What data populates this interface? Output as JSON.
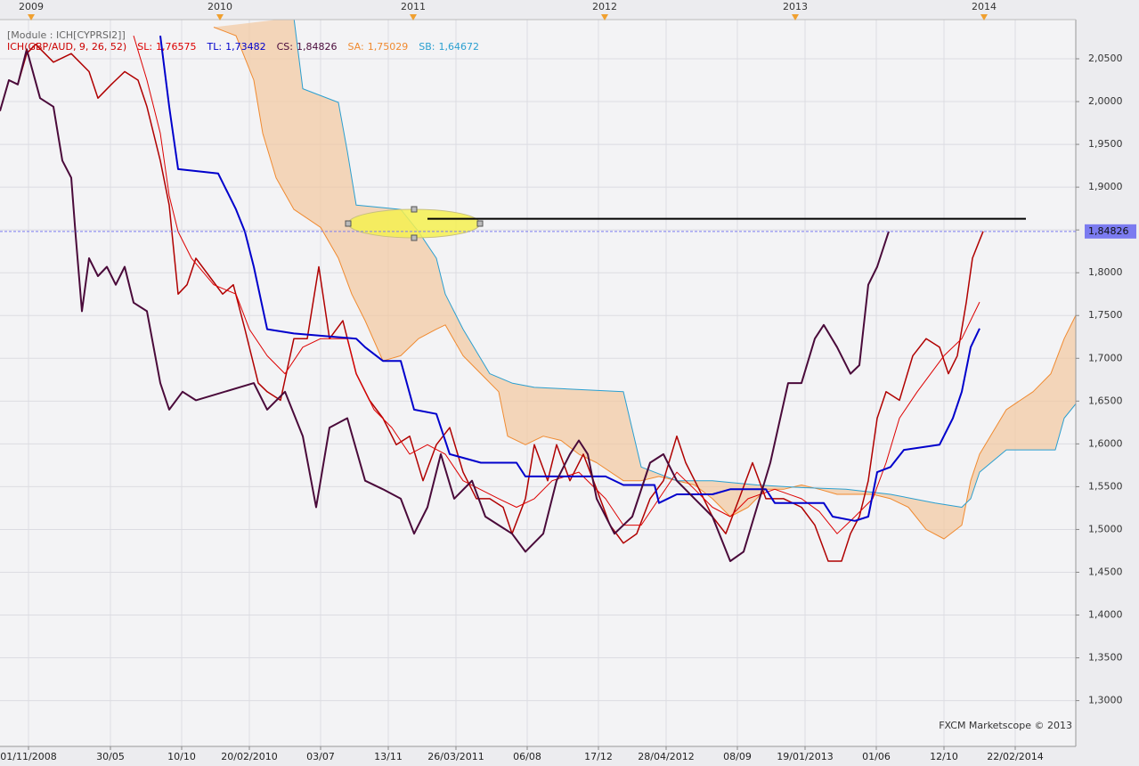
{
  "chart_data": {
    "type": "line",
    "module_label": "[Module : ICH[CYPRSI2]]",
    "indicator_label": "ICH(GBP/AUD, 9, 26, 52)",
    "watermark": "FXCM Marketscope © 2013",
    "grid": true,
    "xlim": [
      0,
      302
    ],
    "ylim": [
      1.2465,
      2.1187
    ],
    "yticks": [
      {
        "value": 1.3,
        "label": "1,3000"
      },
      {
        "value": 1.35,
        "label": "1,3500"
      },
      {
        "value": 1.4,
        "label": "1,4000"
      },
      {
        "value": 1.45,
        "label": "1,4500"
      },
      {
        "value": 1.5,
        "label": "1,5000"
      },
      {
        "value": 1.55,
        "label": "1,5500"
      },
      {
        "value": 1.6,
        "label": "1,6000"
      },
      {
        "value": 1.65,
        "label": "1,6500"
      },
      {
        "value": 1.7,
        "label": "1,7000"
      },
      {
        "value": 1.75,
        "label": "1,7500"
      },
      {
        "value": 1.8,
        "label": "1,8000"
      },
      {
        "value": 1.85,
        "label": "1,8500"
      },
      {
        "value": 1.9,
        "label": "1,9000"
      },
      {
        "value": 1.95,
        "label": "1,9500"
      },
      {
        "value": 2.0,
        "label": "2,0000"
      },
      {
        "value": 2.05,
        "label": "2,0500"
      }
    ],
    "xticks": [
      {
        "value": 8,
        "label": "01/11/2008"
      },
      {
        "value": 31,
        "label": "30/05"
      },
      {
        "value": 51,
        "label": "10/10"
      },
      {
        "value": 70,
        "label": "20/02/2010"
      },
      {
        "value": 90,
        "label": "03/07"
      },
      {
        "value": 109,
        "label": "13/11"
      },
      {
        "value": 128,
        "label": "26/03/2011"
      },
      {
        "value": 148,
        "label": "06/08"
      },
      {
        "value": 168,
        "label": "17/12"
      },
      {
        "value": 187,
        "label": "28/04/2012"
      },
      {
        "value": 207,
        "label": "08/09"
      },
      {
        "value": 226,
        "label": "19/01/2013"
      },
      {
        "value": 246,
        "label": "01/06"
      },
      {
        "value": 265,
        "label": "12/10"
      },
      {
        "value": 285,
        "label": "22/02/2014"
      }
    ],
    "year_ticks": [
      {
        "value": 8.75,
        "label": "2009"
      },
      {
        "value": 61.75,
        "label": "2010"
      },
      {
        "value": 116,
        "label": "2011"
      },
      {
        "value": 169.75,
        "label": "2012"
      },
      {
        "value": 223.25,
        "label": "2013"
      },
      {
        "value": 276.25,
        "label": "2014"
      }
    ],
    "current_price": {
      "value": 1.84826,
      "label": "1,84826",
      "color": "#7b7bf0"
    },
    "level_line": {
      "x": [
        120,
        288
      ],
      "value": 1.863,
      "color": "#000000"
    },
    "cloud_color": "#f2c7a0",
    "close": {
      "color": "#b00000",
      "x": [
        0,
        2.5,
        5,
        7.5,
        10,
        15,
        20,
        25,
        27.5,
        31.25,
        35,
        38.75,
        41.25,
        45,
        47.5,
        50,
        52.5,
        55,
        58.75,
        62.5,
        65.5,
        68.75,
        72.5,
        75,
        78.75,
        82.5,
        86.25,
        89.5,
        92.5,
        96.25,
        100,
        103.75,
        107.5,
        111.25,
        115,
        118.75,
        122.5,
        126.25,
        130,
        133.75,
        137.5,
        141.25,
        143.75,
        147.5,
        150,
        153.75,
        156.25,
        160,
        163.75,
        167.5,
        171.25,
        175,
        178.75,
        182.5,
        186.25,
        190,
        192.5,
        196.25,
        200,
        203.75,
        207.5,
        211.25,
        215,
        220,
        225,
        228.75,
        232.5,
        236.25,
        238.75,
        241.25,
        243.75,
        246.25,
        248.75,
        252.5,
        256.25,
        260,
        263.75,
        266.25,
        268.75,
        271.25,
        273,
        275,
        276
      ],
      "values": [
        1.989,
        2.025,
        2.02,
        2.056,
        2.067,
        2.046,
        2.056,
        2.035,
        2.004,
        2.02,
        2.035,
        2.025,
        1.994,
        1.931,
        1.879,
        1.775,
        1.786,
        1.817,
        1.796,
        1.775,
        1.786,
        1.734,
        1.671,
        1.661,
        1.651,
        1.723,
        1.723,
        1.807,
        1.723,
        1.744,
        1.682,
        1.651,
        1.63,
        1.599,
        1.609,
        1.557,
        1.599,
        1.619,
        1.567,
        1.536,
        1.536,
        1.526,
        1.495,
        1.536,
        1.599,
        1.557,
        1.599,
        1.557,
        1.588,
        1.547,
        1.505,
        1.484,
        1.495,
        1.536,
        1.557,
        1.609,
        1.578,
        1.547,
        1.515,
        1.495,
        1.536,
        1.578,
        1.536,
        1.536,
        1.526,
        1.505,
        1.463,
        1.463,
        1.495,
        1.515,
        1.557,
        1.63,
        1.661,
        1.651,
        1.703,
        1.723,
        1.713,
        1.682,
        1.703,
        1.765,
        1.817,
        1.838,
        1.84826
      ]
    },
    "series": [
      {
        "name": "SL:",
        "last_label": "1,76575",
        "last_value": 1.76575,
        "color": "#dd0000",
        "width": 1,
        "x": [
          37.5,
          41.25,
          45,
          47.5,
          50,
          53.75,
          60,
          66.25,
          70,
          75,
          80,
          85,
          90,
          97.5,
          100,
          105,
          110,
          115,
          120,
          125,
          130,
          140,
          145,
          150,
          155,
          162.5,
          170,
          175,
          180,
          185,
          190,
          195,
          200,
          205,
          210,
          217.5,
          225,
          230,
          235,
          240,
          245,
          248.75,
          252.5,
          257.5,
          265,
          270,
          275
        ],
        "values": [
          2.077,
          2.025,
          1.963,
          1.89,
          1.848,
          1.817,
          1.786,
          1.775,
          1.734,
          1.703,
          1.682,
          1.713,
          1.723,
          1.723,
          1.682,
          1.64,
          1.619,
          1.588,
          1.599,
          1.588,
          1.557,
          1.536,
          1.526,
          1.536,
          1.557,
          1.567,
          1.536,
          1.505,
          1.505,
          1.536,
          1.567,
          1.547,
          1.526,
          1.515,
          1.536,
          1.547,
          1.536,
          1.521,
          1.495,
          1.515,
          1.536,
          1.578,
          1.63,
          1.661,
          1.703,
          1.723,
          1.76575
        ]
      },
      {
        "name": "TL:",
        "last_label": "1,73482",
        "last_value": 1.73482,
        "color": "#0000cc",
        "width": 2,
        "x": [
          45,
          47.5,
          50,
          61.25,
          66.25,
          68.75,
          71.25,
          75,
          82.5,
          100,
          102.5,
          107.5,
          112.5,
          116.25,
          122.5,
          126.25,
          135,
          145,
          147.5,
          170,
          175,
          183.75,
          185,
          190,
          200,
          205,
          215,
          217.5,
          231.25,
          233.75,
          240,
          243.75,
          246.25,
          250,
          253.75,
          263.75,
          267.5,
          270,
          272.5,
          275
        ],
        "values": [
          2.077,
          1.994,
          1.921,
          1.916,
          1.874,
          1.848,
          1.807,
          1.734,
          1.729,
          1.723,
          1.713,
          1.697,
          1.697,
          1.64,
          1.635,
          1.588,
          1.578,
          1.578,
          1.562,
          1.562,
          1.552,
          1.552,
          1.531,
          1.541,
          1.541,
          1.547,
          1.547,
          1.531,
          1.531,
          1.515,
          1.51,
          1.515,
          1.567,
          1.573,
          1.593,
          1.599,
          1.63,
          1.661,
          1.713,
          1.73482
        ]
      },
      {
        "name": "CS:",
        "last_label": "1,84826",
        "last_value": 1.84826,
        "color": "#4a0a3a",
        "width": 2,
        "x": [
          0,
          2.5,
          5,
          7.5,
          11.25,
          15,
          17.5,
          20,
          21.25,
          23,
          25,
          27.5,
          30,
          32.5,
          35,
          37.5,
          41.25,
          45,
          47.5,
          51.25,
          55,
          71.25,
          75,
          80,
          85,
          88.75,
          92.5,
          97.5,
          102.5,
          107.5,
          112.5,
          116.25,
          120,
          123.75,
          127.5,
          132.5,
          136.25,
          140,
          143.75,
          147.5,
          152.5,
          156.25,
          160,
          162.5,
          165,
          167.5,
          172.5,
          177.5,
          182.5,
          186.25,
          190,
          195,
          200,
          205,
          208.75,
          212.5,
          216.25,
          221.25,
          225,
          228.75,
          231.25,
          235,
          238.75,
          241.25,
          243.75,
          246.25,
          249.5
        ],
        "values": [
          1.989,
          2.025,
          2.02,
          2.061,
          2.004,
          1.994,
          1.931,
          1.911,
          1.843,
          1.755,
          1.817,
          1.796,
          1.807,
          1.786,
          1.807,
          1.765,
          1.755,
          1.671,
          1.64,
          1.661,
          1.651,
          1.671,
          1.64,
          1.661,
          1.609,
          1.526,
          1.619,
          1.63,
          1.557,
          1.547,
          1.536,
          1.495,
          1.526,
          1.588,
          1.536,
          1.557,
          1.515,
          1.505,
          1.495,
          1.474,
          1.495,
          1.557,
          1.588,
          1.604,
          1.588,
          1.536,
          1.495,
          1.515,
          1.578,
          1.588,
          1.557,
          1.536,
          1.515,
          1.463,
          1.474,
          1.526,
          1.578,
          1.671,
          1.671,
          1.723,
          1.739,
          1.713,
          1.682,
          1.692,
          1.786,
          1.807,
          1.84826
        ]
      },
      {
        "name": "SA:",
        "last_label": "1,75029",
        "last_value": 1.75029,
        "color": "#f08a30",
        "width": 1,
        "x": [
          60,
          66.25,
          71.25,
          73.75,
          77.5,
          82.5,
          90,
          95,
          98.75,
          102.5,
          107.5,
          112.5,
          117.5,
          122.5,
          125,
          130,
          135,
          140,
          142.5,
          147.5,
          152.5,
          157.5,
          162.5,
          167.5,
          175,
          180,
          185,
          190,
          195,
          200,
          205,
          210,
          215,
          220,
          225,
          230,
          235,
          245,
          250,
          255,
          260,
          265,
          270,
          272.5,
          275,
          282.5,
          290,
          295,
          298.75,
          302
        ],
        "values": [
          2.087,
          2.077,
          2.025,
          1.963,
          1.911,
          1.874,
          1.853,
          1.817,
          1.775,
          1.744,
          1.697,
          1.703,
          1.723,
          1.734,
          1.739,
          1.703,
          1.682,
          1.661,
          1.609,
          1.599,
          1.609,
          1.604,
          1.588,
          1.578,
          1.557,
          1.557,
          1.562,
          1.557,
          1.552,
          1.536,
          1.515,
          1.526,
          1.547,
          1.547,
          1.552,
          1.547,
          1.541,
          1.541,
          1.536,
          1.526,
          1.5,
          1.489,
          1.505,
          1.557,
          1.588,
          1.64,
          1.661,
          1.682,
          1.723,
          1.75029
        ]
      },
      {
        "name": "SB:",
        "last_label": "1,64672",
        "last_value": 1.64672,
        "color": "#2a9fd0",
        "width": 1,
        "x": [
          82.5,
          85,
          95,
          97.5,
          100,
          112.5,
          117.5,
          122.5,
          125,
          130,
          137.5,
          143.75,
          150,
          175,
          180,
          190,
          200,
          212.5,
          225,
          237.5,
          250,
          262.5,
          270,
          272.5,
          275,
          282.5,
          290,
          296.25,
          298.75,
          302
        ],
        "values": [
          2.098,
          2.015,
          1.999,
          1.942,
          1.879,
          1.874,
          1.848,
          1.817,
          1.775,
          1.734,
          1.682,
          1.671,
          1.666,
          1.661,
          1.573,
          1.557,
          1.557,
          1.552,
          1.549,
          1.547,
          1.541,
          1.531,
          1.526,
          1.536,
          1.567,
          1.593,
          1.593,
          1.593,
          1.63,
          1.64672
        ]
      }
    ]
  }
}
